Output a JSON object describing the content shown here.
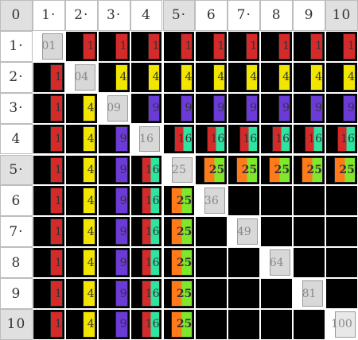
{
  "corner_label": "0",
  "column_headers": [
    "1·",
    "2·",
    "3·",
    "4",
    "5·",
    "6",
    "7·",
    "8",
    "9",
    "10"
  ],
  "row_headers": [
    "1·",
    "2·",
    "3·",
    "4",
    "5·",
    "6",
    "7·",
    "8",
    "9",
    "10"
  ],
  "highlighted_headers": [
    5,
    10
  ],
  "colors": {
    "1": "#d42a2a",
    "4": "#f2e600",
    "9": "#6a3bd6",
    "16": "#2fe3a0",
    "25": "#ff7a1a",
    "25b": "#7fe82b",
    "cell_bg": "#000000",
    "diag_bg": "#d8d8d8"
  },
  "squares": {
    "1": "1",
    "2": "4",
    "3": "9",
    "4": "16",
    "5": "25"
  },
  "diagonal_labels": [
    "01",
    "04",
    "09",
    "16",
    "25",
    "36",
    "49",
    "64",
    "81",
    "100"
  ]
}
